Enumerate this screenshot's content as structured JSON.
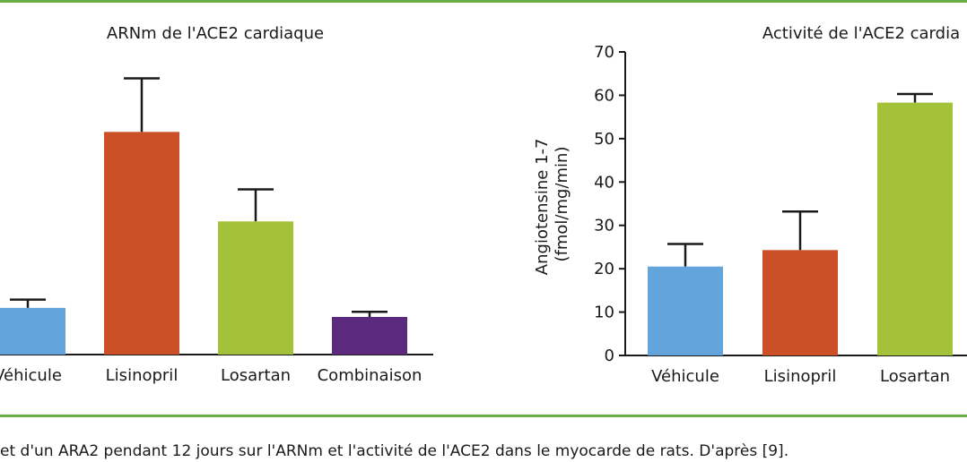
{
  "caption": "et d'un ARA2 pendant 12 jours sur l'ARNm et l'activité de l'ACE2 dans le myocarde de rats. D'après [9].",
  "colors": {
    "rule": "#6aad45",
    "Véhicule": "#63a4dd",
    "Lisinopril": "#cb5028",
    "Losartan": "#a4c13a",
    "Combinaison": "#5b2a7e"
  },
  "chart_data": [
    {
      "type": "bar",
      "title": "ARNm de l'ACE2 cardiaque",
      "categories": [
        "Véhicule",
        "Lisinopril",
        "Losartan",
        "Combinaison"
      ],
      "values": [
        10.8,
        51.5,
        30.8,
        8.7
      ],
      "errors": [
        1.9,
        12.4,
        7.4,
        1.2
      ],
      "ylabel": "",
      "ylim": [
        0,
        70
      ],
      "grid": false
    },
    {
      "type": "bar",
      "title": "Activité de l'ACE2 cardia",
      "categories": [
        "Véhicule",
        "Lisinopril",
        "Losartan"
      ],
      "values": [
        20.5,
        24.3,
        58.3
      ],
      "errors": [
        5.2,
        8.9,
        2.0
      ],
      "ylabel": "Angiotensine 1-7\n(fmol/mg/min)",
      "yticks": [
        0,
        10,
        20,
        30,
        40,
        50,
        60,
        70
      ],
      "ylim": [
        0,
        70
      ],
      "grid": false
    }
  ]
}
